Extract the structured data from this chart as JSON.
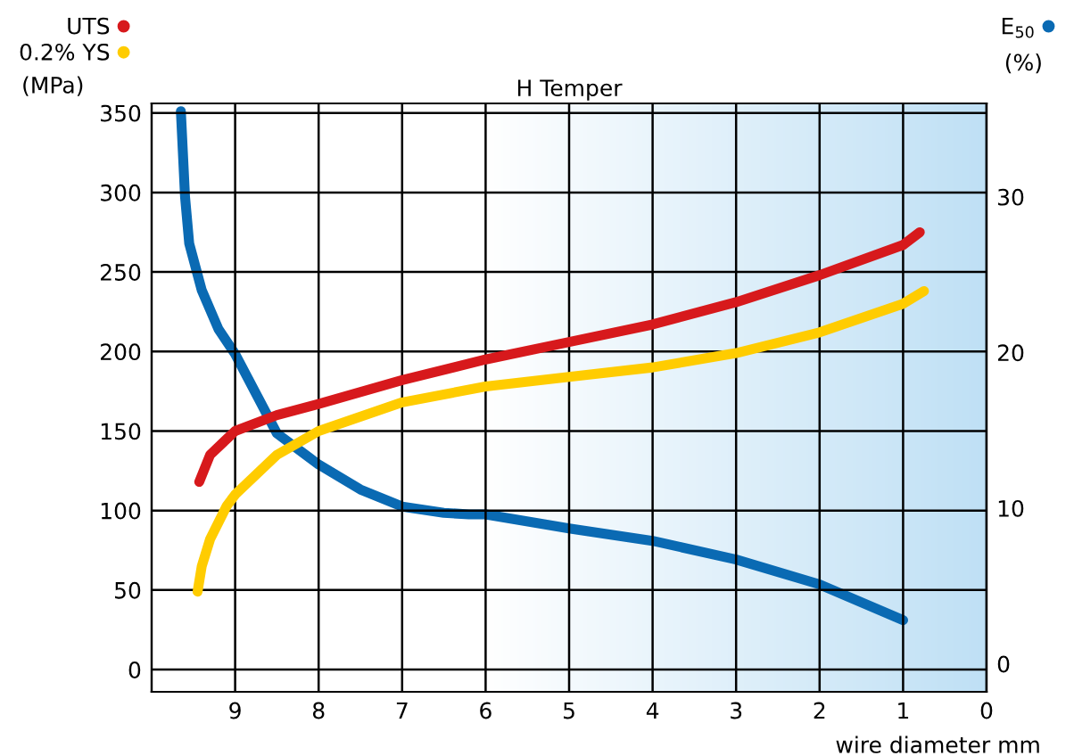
{
  "chart_data": {
    "type": "line",
    "title": "H Temper",
    "xlabel": "wire diameter mm",
    "ylabel": "(MPa)",
    "y2label": "(%)",
    "xlim": [
      10,
      0
    ],
    "xticks": [
      9,
      8,
      7,
      6,
      5,
      4,
      3,
      2,
      1,
      0
    ],
    "ylim": [
      -14,
      356
    ],
    "yticks": [
      0,
      50,
      100,
      150,
      200,
      250,
      300,
      350
    ],
    "y2lim": [
      -1.8,
      36
    ],
    "y2ticks": [
      0,
      10,
      20,
      30
    ],
    "bands": [
      {
        "axis": "x",
        "from": 6,
        "to": 0,
        "color": "#bfe0f5"
      }
    ],
    "grid": true,
    "legend": "top left",
    "line_style": "solid",
    "marker": "none",
    "series": [
      {
        "name": "UTS",
        "color": "#d7191c",
        "x": [
          9.43,
          9.3,
          9.1,
          9,
          8.5,
          8,
          7,
          6,
          5,
          4,
          3,
          2,
          1,
          0.8
        ],
        "values": [
          118,
          135,
          145,
          150,
          160,
          167,
          182,
          195,
          206,
          217,
          231,
          248,
          267,
          275
        ]
      },
      {
        "name": "0.2% YS",
        "color": "#ffcc00",
        "x": [
          9.45,
          9.4,
          9.3,
          9.1,
          9,
          8.5,
          8,
          7,
          6,
          5,
          4,
          3,
          2,
          1,
          0.75
        ],
        "values": [
          49,
          65,
          82,
          103,
          110,
          135,
          150,
          168,
          178,
          184,
          190,
          199,
          212,
          230,
          238
        ]
      },
      {
        "name": "E$_{50}$",
        "color": "#0a6ab3",
        "axis": "y2",
        "x": [
          9.65,
          9.6,
          9.55,
          9.4,
          9.2,
          9,
          8.5,
          8,
          7.5,
          7,
          6.5,
          6.2,
          6,
          5,
          4,
          3,
          2,
          1
        ],
        "values": [
          35.5,
          30,
          27,
          24,
          21.5,
          19.9,
          14.8,
          12.8,
          11.2,
          10.1,
          9.7,
          9.6,
          9.6,
          8.7,
          7.9,
          6.7,
          5.1,
          2.8
        ]
      }
    ]
  }
}
